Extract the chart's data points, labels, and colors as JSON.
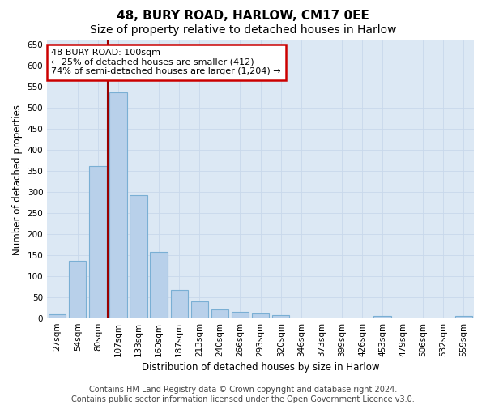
{
  "title": "48, BURY ROAD, HARLOW, CM17 0EE",
  "subtitle": "Size of property relative to detached houses in Harlow",
  "xlabel": "Distribution of detached houses by size in Harlow",
  "ylabel": "Number of detached properties",
  "categories": [
    "27sqm",
    "54sqm",
    "80sqm",
    "107sqm",
    "133sqm",
    "160sqm",
    "187sqm",
    "213sqm",
    "240sqm",
    "266sqm",
    "293sqm",
    "320sqm",
    "346sqm",
    "373sqm",
    "399sqm",
    "426sqm",
    "453sqm",
    "479sqm",
    "506sqm",
    "532sqm",
    "559sqm"
  ],
  "values": [
    10,
    137,
    362,
    537,
    293,
    158,
    68,
    40,
    22,
    16,
    11,
    7,
    0,
    0,
    0,
    0,
    5,
    0,
    0,
    0,
    5
  ],
  "bar_color": "#b8d0ea",
  "bar_edge_color": "#7aafd4",
  "vline_color": "#990000",
  "annotation_text": "48 BURY ROAD: 100sqm\n← 25% of detached houses are smaller (412)\n74% of semi-detached houses are larger (1,204) →",
  "annotation_box_facecolor": "#ffffff",
  "annotation_box_edgecolor": "#cc0000",
  "ylim": [
    0,
    660
  ],
  "yticks": [
    0,
    50,
    100,
    150,
    200,
    250,
    300,
    350,
    400,
    450,
    500,
    550,
    600,
    650
  ],
  "grid_color": "#c8d8eb",
  "background_color": "#dce8f4",
  "footer_text": "Contains HM Land Registry data © Crown copyright and database right 2024.\nContains public sector information licensed under the Open Government Licence v3.0.",
  "title_fontsize": 11,
  "subtitle_fontsize": 10,
  "xlabel_fontsize": 8.5,
  "ylabel_fontsize": 8.5,
  "tick_fontsize": 7.5,
  "footer_fontsize": 7,
  "annot_fontsize": 8
}
